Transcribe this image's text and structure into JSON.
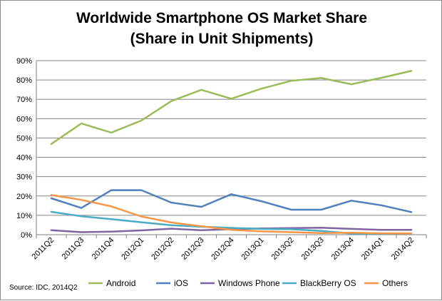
{
  "chart_data": {
    "type": "line",
    "title": "Worldwide Smartphone OS Market Share",
    "subtitle": "(Share in Unit Shipments)",
    "categories": [
      "2011Q2",
      "2011Q3",
      "2011Q4",
      "2012Q1",
      "2012Q2",
      "2012Q3",
      "2012Q4",
      "2013Q1",
      "2013Q2",
      "2013Q3",
      "2013Q4",
      "2014Q1",
      "2014Q2"
    ],
    "y_ticks": [
      "0%",
      "10%",
      "20%",
      "30%",
      "40%",
      "50%",
      "60%",
      "70%",
      "80%",
      "90%"
    ],
    "ylim": [
      0,
      90
    ],
    "y_unit": "%",
    "grid": true,
    "legend_position": "bottom",
    "series": [
      {
        "name": "Android",
        "color": "#9bbb59",
        "values": [
          46.9,
          57.5,
          52.8,
          59.0,
          69.1,
          74.9,
          70.3,
          75.5,
          79.6,
          81.0,
          77.8,
          81.1,
          84.7
        ]
      },
      {
        "name": "iOS",
        "color": "#4f81bd",
        "values": [
          18.8,
          13.8,
          23.0,
          23.0,
          16.6,
          14.4,
          20.9,
          17.3,
          12.9,
          12.9,
          17.6,
          15.2,
          11.7
        ]
      },
      {
        "name": "Windows Phone",
        "color": "#8064a2",
        "values": [
          2.3,
          1.3,
          1.6,
          2.2,
          3.1,
          2.3,
          2.8,
          3.2,
          3.4,
          3.6,
          3.0,
          2.5,
          2.5
        ]
      },
      {
        "name": "BlackBerry OS",
        "color": "#4bacc6",
        "values": [
          11.8,
          9.5,
          8.0,
          6.4,
          4.9,
          4.1,
          3.5,
          3.0,
          2.8,
          1.9,
          0.6,
          0.5,
          0.5
        ]
      },
      {
        "name": "Others",
        "color": "#f79646",
        "values": [
          20.5,
          18.0,
          14.6,
          9.4,
          6.3,
          4.3,
          2.5,
          1.7,
          1.3,
          0.8,
          1.0,
          0.7,
          0.6
        ]
      }
    ],
    "source": "Source: IDC, 2014Q2"
  }
}
